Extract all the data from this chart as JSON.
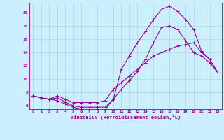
{
  "xlabel": "Windchill (Refroidissement éolien,°C)",
  "background_color": "#cceeff",
  "grid_color": "#aaddcc",
  "line_color": "#990099",
  "xlim": [
    -0.5,
    23.5
  ],
  "ylim": [
    5.5,
    21.5
  ],
  "xticks": [
    0,
    1,
    2,
    3,
    4,
    5,
    6,
    7,
    8,
    9,
    10,
    11,
    12,
    13,
    14,
    15,
    16,
    17,
    18,
    19,
    20,
    21,
    22,
    23
  ],
  "yticks": [
    6,
    8,
    10,
    12,
    14,
    16,
    18,
    20
  ],
  "line1_x": [
    0,
    1,
    2,
    3,
    4,
    5,
    6,
    7,
    8,
    9,
    10,
    11,
    12,
    13,
    14,
    15,
    16,
    17,
    18,
    19,
    20,
    21,
    22,
    23
  ],
  "line1_y": [
    7.5,
    7.2,
    7.0,
    7.2,
    6.6,
    6.0,
    5.8,
    5.8,
    5.8,
    5.8,
    7.0,
    11.5,
    13.5,
    15.5,
    17.2,
    19.0,
    20.5,
    21.0,
    20.2,
    19.0,
    17.5,
    14.2,
    13.0,
    11.0
  ],
  "line2_x": [
    0,
    1,
    2,
    3,
    4,
    5,
    6,
    7,
    8,
    9,
    10,
    11,
    12,
    13,
    14,
    15,
    16,
    17,
    18,
    19,
    20,
    21,
    22,
    23
  ],
  "line2_y": [
    7.5,
    7.2,
    7.0,
    6.8,
    6.3,
    5.8,
    5.5,
    5.5,
    5.5,
    5.5,
    7.0,
    8.5,
    9.8,
    11.2,
    13.0,
    15.5,
    17.8,
    18.0,
    17.5,
    15.8,
    14.0,
    13.5,
    12.5,
    11.0
  ],
  "line3_x": [
    0,
    1,
    2,
    3,
    4,
    5,
    6,
    7,
    8,
    9,
    10,
    11,
    12,
    13,
    14,
    15,
    16,
    17,
    18,
    19,
    20,
    21,
    22,
    23
  ],
  "line3_y": [
    7.5,
    7.2,
    7.0,
    7.5,
    7.0,
    6.5,
    6.5,
    6.5,
    6.5,
    6.8,
    8.5,
    9.5,
    10.5,
    11.5,
    12.5,
    13.5,
    14.0,
    14.5,
    15.0,
    15.2,
    15.5,
    14.0,
    13.0,
    11.0
  ]
}
